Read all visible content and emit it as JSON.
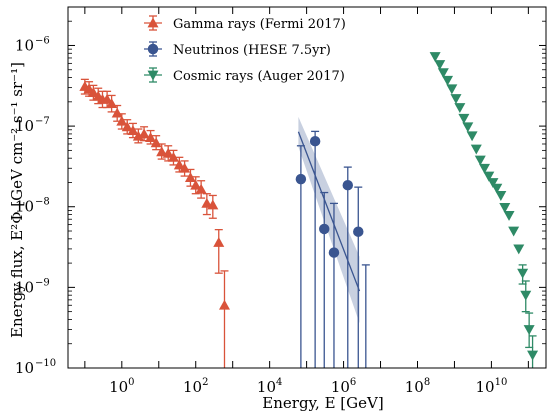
{
  "chart_data": {
    "type": "scatter",
    "xlabel": "Energy, E [GeV]",
    "ylabel": "Energy flux, E²Φ [GeV cm⁻² s⁻¹ sr⁻¹]",
    "x_scale": "log",
    "y_scale": "log",
    "xlim": [
      0.035,
      300000000000.0
    ],
    "ylim": [
      1e-10,
      3e-06
    ],
    "x_ticks": [
      {
        "value": 1,
        "base": "10",
        "exp": "0"
      },
      {
        "value": 100,
        "base": "10",
        "exp": "2"
      },
      {
        "value": 10000,
        "base": "10",
        "exp": "4"
      },
      {
        "value": 1000000,
        "base": "10",
        "exp": "6"
      },
      {
        "value": 100000000,
        "base": "10",
        "exp": "8"
      },
      {
        "value": 10000000000,
        "base": "10",
        "exp": "10"
      }
    ],
    "y_ticks": [
      {
        "value": 1e-10,
        "base": "10",
        "exp": "−10"
      },
      {
        "value": 1e-09,
        "base": "10",
        "exp": "−9"
      },
      {
        "value": 1e-08,
        "base": "10",
        "exp": "−8"
      },
      {
        "value": 1e-07,
        "base": "10",
        "exp": "−7"
      },
      {
        "value": 1e-06,
        "base": "10",
        "exp": "−6"
      }
    ],
    "legend_position": "top-left",
    "series": [
      {
        "name": "Gamma rays (Fermi 2017)",
        "color": "#d9533a",
        "marker": "triangle-up",
        "points": [
          {
            "x": 0.1,
            "y": 3.1e-07,
            "lo": 2.5e-07,
            "hi": 3.8e-07
          },
          {
            "x": 0.13,
            "y": 2.9e-07,
            "lo": 2.35e-07,
            "hi": 3.55e-07
          },
          {
            "x": 0.17,
            "y": 2.6e-07,
            "lo": 2.1e-07,
            "hi": 3.2e-07
          },
          {
            "x": 0.23,
            "y": 2.35e-07,
            "lo": 1.9e-07,
            "hi": 2.95e-07
          },
          {
            "x": 0.3,
            "y": 2.15e-07,
            "lo": 1.7e-07,
            "hi": 2.7e-07
          },
          {
            "x": 0.4,
            "y": 2.15e-07,
            "lo": 1.7e-07,
            "hi": 2.7e-07
          },
          {
            "x": 0.53,
            "y": 1.9e-07,
            "lo": 1.5e-07,
            "hi": 2.4e-07
          },
          {
            "x": 0.75,
            "y": 1.45e-07,
            "lo": 1.15e-07,
            "hi": 1.8e-07
          },
          {
            "x": 1.0,
            "y": 1.15e-07,
            "lo": 9.2e-08,
            "hi": 1.42e-07
          },
          {
            "x": 1.4,
            "y": 9.8e-08,
            "lo": 8e-08,
            "hi": 1.2e-07
          },
          {
            "x": 2.0,
            "y": 8.8e-08,
            "lo": 7.2e-08,
            "hi": 1.08e-07
          },
          {
            "x": 2.8,
            "y": 7.5e-08,
            "lo": 6.2e-08,
            "hi": 9.2e-08
          },
          {
            "x": 4.0,
            "y": 8e-08,
            "lo": 6.6e-08,
            "hi": 9.8e-08
          },
          {
            "x": 6.0,
            "y": 7.2e-08,
            "lo": 6e-08,
            "hi": 8.8e-08
          },
          {
            "x": 8.5,
            "y": 6.2e-08,
            "lo": 5.1e-08,
            "hi": 7.6e-08
          },
          {
            "x": 12,
            "y": 4.8e-08,
            "lo": 3.9e-08,
            "hi": 6e-08
          },
          {
            "x": 18,
            "y": 4.6e-08,
            "lo": 3.7e-08,
            "hi": 5.7e-08
          },
          {
            "x": 25,
            "y": 4.1e-08,
            "lo": 3.3e-08,
            "hi": 5e-08
          },
          {
            "x": 36,
            "y": 3.3e-08,
            "lo": 2.7e-08,
            "hi": 4.1e-08
          },
          {
            "x": 50,
            "y": 3e-08,
            "lo": 2.4e-08,
            "hi": 3.7e-08
          },
          {
            "x": 72,
            "y": 2.3e-08,
            "lo": 1.8e-08,
            "hi": 2.9e-08
          },
          {
            "x": 100,
            "y": 1.85e-08,
            "lo": 1.45e-08,
            "hi": 2.35e-08
          },
          {
            "x": 140,
            "y": 1.65e-08,
            "lo": 1.28e-08,
            "hi": 2.1e-08
          },
          {
            "x": 200,
            "y": 1.1e-08,
            "lo": 8e-09,
            "hi": 1.45e-08
          },
          {
            "x": 290,
            "y": 1.05e-08,
            "lo": 7.2e-09,
            "hi": 1.38e-08
          },
          {
            "x": 420,
            "y": 3.6e-09,
            "lo": 1.5e-09,
            "hi": 5.2e-09
          },
          {
            "x": 600,
            "y": 6e-10,
            "lo": 1e-10,
            "hi": 1.6e-09
          }
        ]
      },
      {
        "name": "Neutrinos (HESE 7.5yr)",
        "color": "#3a5590",
        "marker": "circle",
        "points": [
          {
            "x": 70000,
            "y": 2.2e-08,
            "lo": 1e-10,
            "hi": 5.7e-08,
            "xlo": 55000,
            "xhi": 90000
          },
          {
            "x": 170000,
            "y": 6.5e-08,
            "lo": 1e-10,
            "hi": 8.6e-08,
            "xlo": 135000,
            "xhi": 215000
          },
          {
            "x": 300000,
            "y": 5.3e-09,
            "lo": 1e-10,
            "hi": 1.5e-08,
            "xlo": 240000,
            "xhi": 380000
          },
          {
            "x": 550000,
            "y": 2.7e-09,
            "lo": 1e-10,
            "hi": 1.1e-08,
            "xlo": 440000,
            "xhi": 700000
          },
          {
            "x": 1300000,
            "y": 1.85e-08,
            "lo": 1e-10,
            "hi": 3.1e-08,
            "xlo": 1050000,
            "xhi": 1650000
          },
          {
            "x": 2500000,
            "y": 4.9e-09,
            "lo": 1e-10,
            "hi": 1.75e-08,
            "xlo": 2000000,
            "xhi": 3200000
          },
          {
            "x": 4000000,
            "y": 1e-10,
            "lo": 1e-10,
            "hi": 1.9e-09
          }
        ],
        "band": {
          "x_start": 60000,
          "x_end": 2700000,
          "center": [
            8.5e-08,
            9e-10
          ],
          "upper": [
            1.3e-07,
            2.4e-09
          ],
          "lower": [
            5.5e-08,
            3.6e-10
          ]
        }
      },
      {
        "name": "Cosmic rays (Auger 2017)",
        "color": "#2e8a66",
        "marker": "triangle-down",
        "points": [
          {
            "x": 300000000.0,
            "y": 7.3e-07
          },
          {
            "x": 400000000.0,
            "y": 5.8e-07
          },
          {
            "x": 500000000.0,
            "y": 4.6e-07
          },
          {
            "x": 650000000.0,
            "y": 3.7e-07
          },
          {
            "x": 850000000.0,
            "y": 2.9e-07
          },
          {
            "x": 1100000000.0,
            "y": 2.2e-07
          },
          {
            "x": 1400000000.0,
            "y": 1.7e-07
          },
          {
            "x": 1800000000.0,
            "y": 1.25e-07
          },
          {
            "x": 2300000000.0,
            "y": 9.8e-08
          },
          {
            "x": 3000000000.0,
            "y": 7.6e-08
          },
          {
            "x": 3900000000.0,
            "y": 5.2e-08
          },
          {
            "x": 5000000000.0,
            "y": 3.8e-08
          },
          {
            "x": 6500000000.0,
            "y": 3e-08
          },
          {
            "x": 8500000000.0,
            "y": 2.4e-08
          },
          {
            "x": 11000000000.0,
            "y": 2e-08
          },
          {
            "x": 14000000000.0,
            "y": 1.7e-08
          },
          {
            "x": 18000000000.0,
            "y": 1.38e-08
          },
          {
            "x": 23000000000.0,
            "y": 9.8e-09
          },
          {
            "x": 30000000000.0,
            "y": 7.8e-09
          },
          {
            "x": 40000000000.0,
            "y": 5e-09
          },
          {
            "x": 55000000000.0,
            "y": 3e-09
          },
          {
            "x": 70000000000.0,
            "y": 1.5e-09,
            "lo": 1.1e-09,
            "hi": 1.9e-09
          },
          {
            "x": 85000000000.0,
            "y": 8e-10,
            "lo": 5e-10,
            "hi": 1.2e-09
          },
          {
            "x": 105000000000.0,
            "y": 3e-10,
            "lo": 1.8e-10,
            "hi": 4.8e-10
          },
          {
            "x": 130000000000.0,
            "y": 1.45e-10,
            "lo": 1e-10,
            "hi": 2.5e-10
          }
        ]
      }
    ]
  }
}
